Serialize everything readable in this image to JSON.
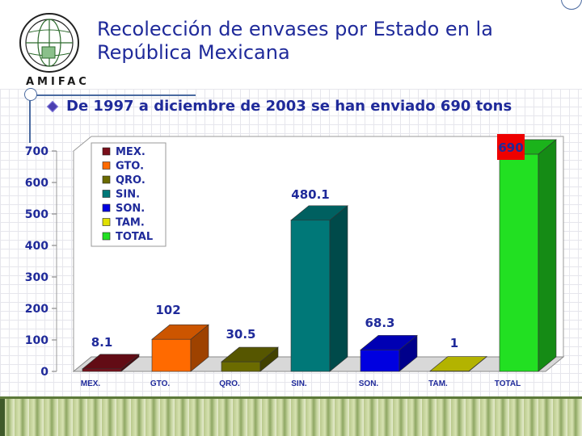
{
  "slide": {
    "title_line1": "Recolección de envases por Estado en la",
    "title_line2": "República Mexicana",
    "subtitle": "De 1997 a  diciembre de 2003 se han enviado  690 tons",
    "logo_text": "AMIFAC"
  },
  "chart_data": {
    "type": "bar",
    "categories": [
      "MEX.",
      "GTO.",
      "QRO.",
      "SIN.",
      "SON.",
      "TAM.",
      "TOTAL"
    ],
    "values": [
      8.1,
      102,
      30.5,
      480.1,
      68.3,
      1,
      690
    ],
    "data_labels": [
      "8.1",
      "102",
      "30.5",
      "480.1",
      "68.3",
      "1",
      "690"
    ],
    "colors": [
      "#7a0f1a",
      "#ff6a00",
      "#6b6b00",
      "#007878",
      "#0000e0",
      "#e0e000",
      "#22e022"
    ],
    "yticks": [
      "0",
      "100",
      "200",
      "300",
      "400",
      "500",
      "600",
      "700"
    ],
    "ylim": [
      0,
      700
    ],
    "legend": [
      "MEX.",
      "GTO.",
      "QRO.",
      "SIN.",
      "SON.",
      "TAM.",
      "TOTAL"
    ],
    "legend_placement": "top-left",
    "highlight_color": "#ee0000"
  }
}
